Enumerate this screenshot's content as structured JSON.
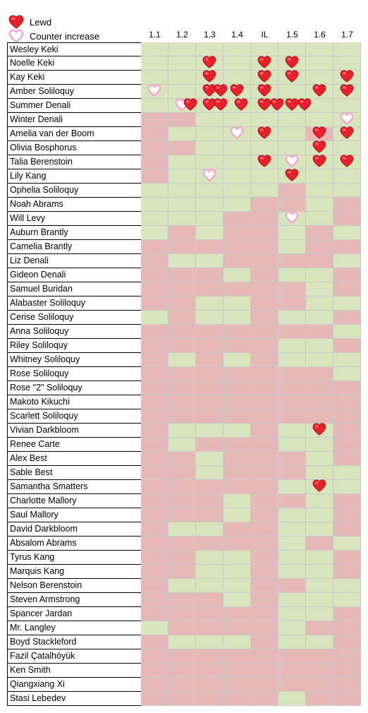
{
  "legend": {
    "lewd_label": "Lewd",
    "counter_label": "Counter increase"
  },
  "colors": {
    "green": "#d8e4bc",
    "red": "#e6b8b7",
    "lewd_heart": "#e8202a",
    "counter_heart": "#f7a8cf"
  },
  "columns": [
    "1.1",
    "1.2",
    "1.3",
    "1.4",
    "IL",
    "1.5",
    "1.6",
    "1.7"
  ],
  "rows": [
    {
      "name": "Wesley Keki",
      "cells": "gggggggg",
      "marks": []
    },
    {
      "name": "Noelle Keki",
      "cells": "gggggggg",
      "marks": [
        {
          "col": 2,
          "type": "lewd"
        },
        {
          "col": 4,
          "type": "lewd"
        },
        {
          "col": 5,
          "type": "lewd"
        }
      ]
    },
    {
      "name": "Kay Keki",
      "cells": "gggggggg",
      "marks": [
        {
          "col": 2,
          "type": "lewd"
        },
        {
          "col": 4,
          "type": "lewd"
        },
        {
          "col": 5,
          "type": "lewd"
        },
        {
          "col": 7,
          "type": "lewd"
        }
      ]
    },
    {
      "name": "Amber Soliloquy",
      "cells": "gggggggg",
      "marks": [
        {
          "col": 0,
          "type": "counter"
        },
        {
          "col": 2,
          "type": "lewd"
        },
        {
          "col": 2,
          "type": "lewd",
          "dx": 16
        },
        {
          "col": 3,
          "type": "lewd"
        },
        {
          "col": 4,
          "type": "lewd"
        },
        {
          "col": 6,
          "type": "lewd"
        },
        {
          "col": 7,
          "type": "lewd"
        }
      ]
    },
    {
      "name": "Summer Denali",
      "cells": "gggggggg",
      "marks": [
        {
          "col": 1,
          "type": "counter"
        },
        {
          "col": 1,
          "type": "lewd",
          "dx": 12
        },
        {
          "col": 2,
          "type": "lewd"
        },
        {
          "col": 2,
          "type": "lewd",
          "dx": 16
        },
        {
          "col": 3,
          "type": "lewd",
          "dx": 6
        },
        {
          "col": 4,
          "type": "lewd"
        },
        {
          "col": 4,
          "type": "lewd",
          "dx": 18
        },
        {
          "col": 5,
          "type": "lewd"
        },
        {
          "col": 5,
          "type": "lewd",
          "dx": 18
        }
      ]
    },
    {
      "name": "Winter Denali",
      "cells": "rrgggggg",
      "marks": [
        {
          "col": 7,
          "type": "counter"
        }
      ]
    },
    {
      "name": "Amelia van der Boom",
      "cells": "rgggggrg",
      "marks": [
        {
          "col": 3,
          "type": "counter"
        },
        {
          "col": 4,
          "type": "lewd"
        },
        {
          "col": 6,
          "type": "lewd"
        },
        {
          "col": 7,
          "type": "lewd"
        }
      ]
    },
    {
      "name": "Olivia Bosphorus",
      "cells": "rrgggggg",
      "marks": [
        {
          "col": 6,
          "type": "lewd"
        }
      ]
    },
    {
      "name": "Talia Berenstoin",
      "cells": "rggggggg",
      "marks": [
        {
          "col": 4,
          "type": "lewd"
        },
        {
          "col": 5,
          "type": "counter"
        },
        {
          "col": 6,
          "type": "lewd"
        },
        {
          "col": 7,
          "type": "lewd"
        }
      ]
    },
    {
      "name": "Lily Kang",
      "cells": "rggggggg",
      "marks": [
        {
          "col": 2,
          "type": "counter"
        },
        {
          "col": 5,
          "type": "lewd"
        }
      ]
    },
    {
      "name": "Ophelia Soliloquy",
      "cells": "gggggrgg",
      "marks": []
    },
    {
      "name": "Noah Abrams",
      "cells": "ggggrrgr",
      "marks": []
    },
    {
      "name": "Will Levy",
      "cells": "gggrrggr",
      "marks": [
        {
          "col": 5,
          "type": "counter"
        }
      ]
    },
    {
      "name": "Auburn Brantly",
      "cells": "grgrrgrg",
      "marks": []
    },
    {
      "name": "Camelia Brantly",
      "cells": "rrrrrgrr",
      "marks": []
    },
    {
      "name": "Liz Denali",
      "cells": "rggrrrrg",
      "marks": []
    },
    {
      "name": "Gideon Denali",
      "cells": "rrrgrggr",
      "marks": []
    },
    {
      "name": "Samuel Buridan",
      "cells": "rrrrrrgr",
      "marks": []
    },
    {
      "name": "Alabaster Soliloquy",
      "cells": "rrggrrgg",
      "marks": []
    },
    {
      "name": "Cerise Soliloquy",
      "cells": "grggrggr",
      "marks": []
    },
    {
      "name": "Anna Soliloquy",
      "cells": "rrrrrrrg",
      "marks": []
    },
    {
      "name": "Riley Soliloquy",
      "cells": "rrrrrggr",
      "marks": []
    },
    {
      "name": "Whitney Soliloquy",
      "cells": "rgrgrggg",
      "marks": []
    },
    {
      "name": "Rose Soliloquy",
      "cells": "rrrrrrrg",
      "marks": []
    },
    {
      "name": "Rose \"2\" Soliloquy",
      "cells": "rrrrrrrr",
      "marks": []
    },
    {
      "name": "Makoto Kikuchi",
      "cells": "rrrrrrrr",
      "marks": []
    },
    {
      "name": "Scarlett Soliloquy",
      "cells": "rrrrrrrr",
      "marks": []
    },
    {
      "name": "Vivian Darkbloom",
      "cells": "rgggrggr",
      "marks": [
        {
          "col": 6,
          "type": "lewd"
        }
      ]
    },
    {
      "name": "Renee Carte",
      "cells": "rgrrrggr",
      "marks": []
    },
    {
      "name": "Alex Best",
      "cells": "rrgrrrgr",
      "marks": []
    },
    {
      "name": "Sable Best",
      "cells": "rrgrrrgg",
      "marks": []
    },
    {
      "name": "Samantha Smatters",
      "cells": "rrrrrggg",
      "marks": [
        {
          "col": 6,
          "type": "lewd"
        }
      ]
    },
    {
      "name": "Charlotte Mallory",
      "cells": "rrrgrrgr",
      "marks": []
    },
    {
      "name": "Saul Mallory",
      "cells": "rrrgrggr",
      "marks": []
    },
    {
      "name": "David Darkbloom",
      "cells": "rggrrggr",
      "marks": []
    },
    {
      "name": "Absalom Abrams",
      "cells": "rrrrrgrg",
      "marks": []
    },
    {
      "name": "Tyrus Kang",
      "cells": "rrggrggr",
      "marks": []
    },
    {
      "name": "Marquis Kang",
      "cells": "rrggrggr",
      "marks": []
    },
    {
      "name": "Nelson Berenstoin",
      "cells": "rgggrrgg",
      "marks": []
    },
    {
      "name": "Steven Armstrong",
      "cells": "rrrgrggg",
      "marks": []
    },
    {
      "name": "Spancer Jardan",
      "cells": "rrrrrggr",
      "marks": []
    },
    {
      "name": "Mr. Langley",
      "cells": "grrrrgrr",
      "marks": []
    },
    {
      "name": "Boyd Stackleford",
      "cells": "rgggrggr",
      "marks": []
    },
    {
      "name": "Fazil Çatalhöyük",
      "cells": "rrrrrrrr",
      "marks": []
    },
    {
      "name": "Ken Smith",
      "cells": "rrrrrrrr",
      "marks": []
    },
    {
      "name": "Qiangxiang Xi",
      "cells": "rrrrrrrr",
      "marks": []
    },
    {
      "name": "Stasi Lebedev",
      "cells": "rrrrrgrr",
      "marks": []
    }
  ]
}
